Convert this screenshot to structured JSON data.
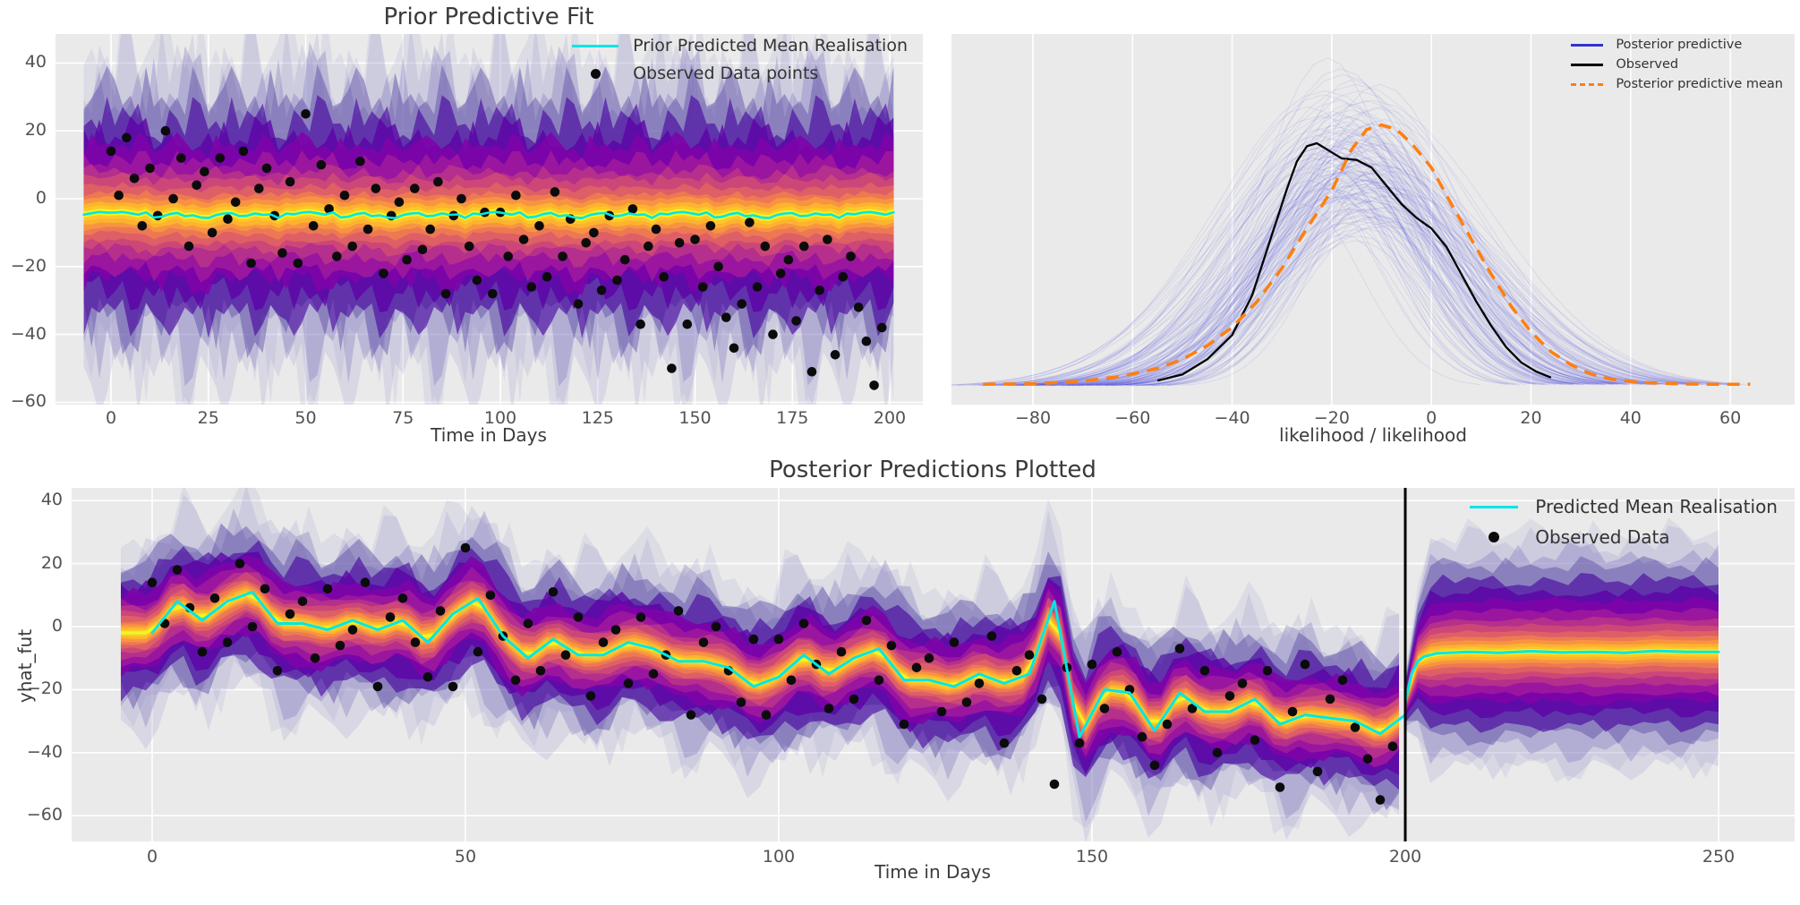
{
  "figure": {
    "bg": "#ffffff",
    "axes_bg": "#eaeaea",
    "grid_color": "#ffffff",
    "tick_color": "#525252",
    "cyan": "#00e6e6",
    "dot_color": "#0b0b0b",
    "blue": "#2b2bd8",
    "orange": "#ff7f0e",
    "black": "#000000",
    "jitter": [
      1.0,
      1.25,
      0.85,
      1.1,
      0.75,
      1.35,
      0.95,
      0.8,
      1.2,
      1.05,
      0.7,
      1.3,
      0.9,
      1.15,
      0.78,
      1.42,
      1.0,
      0.88,
      1.22,
      0.8,
      1.1,
      0.95,
      1.35,
      0.75,
      1.05,
      1.28,
      0.82,
      1.18,
      0.92,
      0.72,
      1.4,
      1.0,
      0.86,
      1.24,
      0.78,
      1.12,
      0.96,
      1.32,
      0.74,
      1.08,
      0.9,
      1.26,
      0.84,
      1.16,
      0.73,
      1.38,
      1.02,
      0.94
    ],
    "band_layers": [
      {
        "f": 1.0,
        "c": "#a7a3d4",
        "a": 0.2
      },
      {
        "f": 0.97,
        "c": "#938dc8",
        "a": 0.2
      },
      {
        "f": 0.86,
        "c": "#7a6fba",
        "a": 0.32
      },
      {
        "f": 0.74,
        "c": "#5c49a4",
        "a": 0.45
      },
      {
        "f": 0.63,
        "c": "#46039f",
        "a": 0.62
      },
      {
        "f": 0.53,
        "c": "#5c01a6",
        "a": 0.78
      },
      {
        "f": 0.44,
        "c": "#7e03a8",
        "a": 0.9
      },
      {
        "f": 0.36,
        "c": "#9c179e",
        "a": 0.97
      },
      {
        "f": 0.29,
        "c": "#b52f8c",
        "a": 1
      },
      {
        "f": 0.23,
        "c": "#cc4778",
        "a": 1
      },
      {
        "f": 0.18,
        "c": "#de5f65",
        "a": 1
      },
      {
        "f": 0.135,
        "c": "#ed7953",
        "a": 1
      },
      {
        "f": 0.1,
        "c": "#f89441",
        "a": 1
      },
      {
        "f": 0.068,
        "c": "#fdb32f",
        "a": 1
      },
      {
        "f": 0.042,
        "c": "#fdc827",
        "a": 1
      },
      {
        "f": 0.02,
        "c": "#f0f524",
        "a": 1
      }
    ]
  },
  "shared": {
    "observed_points": [
      [
        0,
        14
      ],
      [
        2,
        1
      ],
      [
        4,
        18
      ],
      [
        6,
        6
      ],
      [
        8,
        -8
      ],
      [
        10,
        9
      ],
      [
        12,
        -5
      ],
      [
        14,
        20
      ],
      [
        16,
        0
      ],
      [
        18,
        12
      ],
      [
        20,
        -14
      ],
      [
        22,
        4
      ],
      [
        24,
        8
      ],
      [
        26,
        -10
      ],
      [
        28,
        12
      ],
      [
        30,
        -6
      ],
      [
        32,
        -1
      ],
      [
        34,
        14
      ],
      [
        36,
        -19
      ],
      [
        38,
        3
      ],
      [
        40,
        9
      ],
      [
        42,
        -5
      ],
      [
        44,
        -16
      ],
      [
        46,
        5
      ],
      [
        48,
        -19
      ],
      [
        50,
        25
      ],
      [
        52,
        -8
      ],
      [
        54,
        10
      ],
      [
        56,
        -3
      ],
      [
        58,
        -17
      ],
      [
        60,
        1
      ],
      [
        62,
        -14
      ],
      [
        64,
        11
      ],
      [
        66,
        -9
      ],
      [
        68,
        3
      ],
      [
        70,
        -22
      ],
      [
        72,
        -5
      ],
      [
        74,
        -1
      ],
      [
        76,
        -18
      ],
      [
        78,
        3
      ],
      [
        80,
        -15
      ],
      [
        82,
        -9
      ],
      [
        84,
        5
      ],
      [
        86,
        -28
      ],
      [
        88,
        -5
      ],
      [
        90,
        0
      ],
      [
        92,
        -14
      ],
      [
        94,
        -24
      ],
      [
        96,
        -4
      ],
      [
        98,
        -28
      ],
      [
        100,
        -4
      ],
      [
        102,
        -17
      ],
      [
        104,
        1
      ],
      [
        106,
        -12
      ],
      [
        108,
        -26
      ],
      [
        110,
        -8
      ],
      [
        112,
        -23
      ],
      [
        114,
        2
      ],
      [
        116,
        -17
      ],
      [
        118,
        -6
      ],
      [
        120,
        -31
      ],
      [
        122,
        -13
      ],
      [
        124,
        -10
      ],
      [
        126,
        -27
      ],
      [
        128,
        -5
      ],
      [
        130,
        -24
      ],
      [
        132,
        -18
      ],
      [
        134,
        -3
      ],
      [
        136,
        -37
      ],
      [
        138,
        -14
      ],
      [
        140,
        -9
      ],
      [
        142,
        -23
      ],
      [
        144,
        -50
      ],
      [
        146,
        -13
      ],
      [
        148,
        -37
      ],
      [
        150,
        -12
      ],
      [
        152,
        -26
      ],
      [
        154,
        -8
      ],
      [
        156,
        -20
      ],
      [
        158,
        -35
      ],
      [
        160,
        -44
      ],
      [
        162,
        -31
      ],
      [
        164,
        -7
      ],
      [
        166,
        -26
      ],
      [
        168,
        -14
      ],
      [
        170,
        -40
      ],
      [
        172,
        -22
      ],
      [
        174,
        -18
      ],
      [
        176,
        -36
      ],
      [
        178,
        -14
      ],
      [
        180,
        -51
      ],
      [
        182,
        -27
      ],
      [
        184,
        -12
      ],
      [
        186,
        -46
      ],
      [
        188,
        -23
      ],
      [
        190,
        -17
      ],
      [
        192,
        -32
      ],
      [
        194,
        -42
      ],
      [
        196,
        -55
      ],
      [
        198,
        -38
      ]
    ]
  },
  "panels": {
    "prior": {
      "title": "Prior Predictive Fit",
      "xlabel": "Time in Days",
      "xticks": [
        0,
        25,
        50,
        75,
        100,
        125,
        150,
        175,
        200
      ],
      "yticks": [
        40,
        20,
        0,
        -20,
        -40,
        -60
      ],
      "legend": [
        {
          "label": "Prior Predicted Mean Realisation",
          "type": "line",
          "color": "#00e6e6"
        },
        {
          "label": "Observed Data points",
          "type": "dot",
          "color": "#0b0b0b"
        }
      ],
      "chart_data": {
        "type": "density-band-timeseries",
        "xlim": [
          -14,
          204
        ],
        "ylim": [
          -61,
          48
        ],
        "x_range": [
          -7,
          201
        ],
        "mean_level": -5,
        "mean_wiggle": 1.3,
        "outer_halfwidth": 44,
        "observed": "shared.observed_points"
      }
    },
    "likelihood": {
      "xlabel": "likelihood / likelihood",
      "xticks": [
        -80,
        -60,
        -40,
        -20,
        0,
        20,
        40,
        60
      ],
      "yticks": [],
      "legend": [
        {
          "label": "Posterior predictive",
          "type": "line",
          "color": "#3333cc"
        },
        {
          "label": "Observed",
          "type": "line",
          "color": "#000000"
        },
        {
          "label": "Posterior predictive mean",
          "type": "dash",
          "color": "#ff7f0e"
        }
      ],
      "chart_data": {
        "type": "kde-ensemble",
        "xlim": [
          -96,
          73
        ],
        "ensemble": {
          "n": 150,
          "color": "#2b2bd8",
          "alpha": 0.085,
          "centers": [
            -20,
            -13,
            -16,
            -10,
            -18,
            -14,
            -22,
            -12,
            -15,
            -17,
            -11,
            -19,
            -13,
            -16,
            -14,
            -21,
            -12,
            -18,
            -15,
            -13
          ],
          "sigmas": [
            16,
            19,
            14,
            21,
            17,
            15,
            20,
            18,
            16,
            22,
            15,
            19,
            17,
            14,
            20,
            16,
            18,
            15,
            21,
            17
          ],
          "peaks": [
            0.85,
            0.7,
            0.95,
            0.6,
            0.8,
            0.9,
            0.65,
            0.75,
            1.0,
            0.7,
            0.88,
            0.62,
            0.92,
            0.78,
            0.68,
            0.85,
            0.73,
            0.9,
            0.66,
            0.8
          ]
        },
        "observed_curve": [
          [
            -55,
            0.02
          ],
          [
            -50,
            0.04
          ],
          [
            -45,
            0.09
          ],
          [
            -40,
            0.17
          ],
          [
            -36,
            0.3
          ],
          [
            -32,
            0.5
          ],
          [
            -29,
            0.65
          ],
          [
            -27,
            0.74
          ],
          [
            -25,
            0.79
          ],
          [
            -23,
            0.8
          ],
          [
            -21,
            0.78
          ],
          [
            -18,
            0.75
          ],
          [
            -15,
            0.745
          ],
          [
            -12,
            0.72
          ],
          [
            -9,
            0.66
          ],
          [
            -6,
            0.6
          ],
          [
            -3,
            0.555
          ],
          [
            0,
            0.52
          ],
          [
            3,
            0.46
          ],
          [
            6,
            0.37
          ],
          [
            9,
            0.28
          ],
          [
            12,
            0.2
          ],
          [
            15,
            0.13
          ],
          [
            18,
            0.08
          ],
          [
            21,
            0.05
          ],
          [
            24,
            0.03
          ]
        ],
        "mean_curve": [
          [
            -90,
            0.008
          ],
          [
            -80,
            0.01
          ],
          [
            -70,
            0.018
          ],
          [
            -62,
            0.035
          ],
          [
            -55,
            0.06
          ],
          [
            -50,
            0.09
          ],
          [
            -45,
            0.135
          ],
          [
            -40,
            0.195
          ],
          [
            -35,
            0.28
          ],
          [
            -30,
            0.39
          ],
          [
            -25,
            0.52
          ],
          [
            -20,
            0.645
          ],
          [
            -16,
            0.78
          ],
          [
            -13,
            0.845
          ],
          [
            -10,
            0.86
          ],
          [
            -7,
            0.845
          ],
          [
            -4,
            0.8
          ],
          [
            0,
            0.72
          ],
          [
            4,
            0.6
          ],
          [
            8,
            0.485
          ],
          [
            12,
            0.37
          ],
          [
            16,
            0.265
          ],
          [
            20,
            0.18
          ],
          [
            24,
            0.115
          ],
          [
            28,
            0.072
          ],
          [
            32,
            0.042
          ],
          [
            36,
            0.025
          ],
          [
            42,
            0.014
          ],
          [
            50,
            0.009
          ],
          [
            57,
            0.008
          ],
          [
            64,
            0.008
          ]
        ]
      }
    },
    "posterior": {
      "title": "Posterior Predictions Plotted",
      "xlabel": "Time in Days",
      "ylabel": "yhat_fut",
      "xticks": [
        0,
        50,
        100,
        150,
        200,
        250
      ],
      "yticks": [
        40,
        20,
        0,
        -20,
        -40,
        -60
      ],
      "legend": [
        {
          "label": "Predicted Mean Realisation",
          "type": "line",
          "color": "#00e6e6"
        },
        {
          "label": "Observed Data",
          "type": "dot",
          "color": "#0b0b0b"
        }
      ],
      "chart_data": {
        "type": "density-band-timeseries",
        "xlim": [
          -13,
          262
        ],
        "ylim": [
          -68,
          44
        ],
        "split_line_x": 200,
        "outer_halfwidth": 27,
        "mean_series": {
          "x": [
            0,
            4,
            8,
            12,
            16,
            20,
            24,
            28,
            32,
            36,
            40,
            44,
            48,
            52,
            56,
            60,
            64,
            68,
            72,
            76,
            80,
            84,
            88,
            92,
            96,
            100,
            104,
            108,
            112,
            116,
            120,
            124,
            128,
            132,
            136,
            140,
            144,
            148,
            152,
            156,
            160,
            164,
            168,
            172,
            176,
            180,
            184,
            188,
            192,
            196,
            200
          ],
          "y": [
            -2,
            8,
            2,
            8,
            11,
            1,
            1,
            -1,
            2,
            -1,
            2,
            -5,
            4,
            9,
            -3,
            -10,
            -4,
            -9,
            -9,
            -5,
            -7,
            -11,
            -11,
            -13,
            -19,
            -16,
            -9,
            -15,
            -10,
            -7,
            -17,
            -17,
            -19,
            -15,
            -18,
            -15,
            8,
            -35,
            -20,
            -21,
            -33,
            -21,
            -27,
            -27,
            -23,
            -31,
            -28,
            -29,
            -30,
            -34,
            -28
          ],
          "forecast_x": [
            200,
            201,
            202,
            203,
            205,
            210,
            215,
            220,
            225,
            230,
            235,
            240,
            245,
            250
          ],
          "forecast_y": [
            -24,
            -15,
            -11,
            -9.5,
            -8.5,
            -8,
            -8.3,
            -7.8,
            -8.2,
            -8,
            -8.3,
            -7.7,
            -8,
            -8
          ]
        },
        "forecast_outer_halfwidth": 36,
        "observed": "shared.observed_points"
      }
    }
  }
}
